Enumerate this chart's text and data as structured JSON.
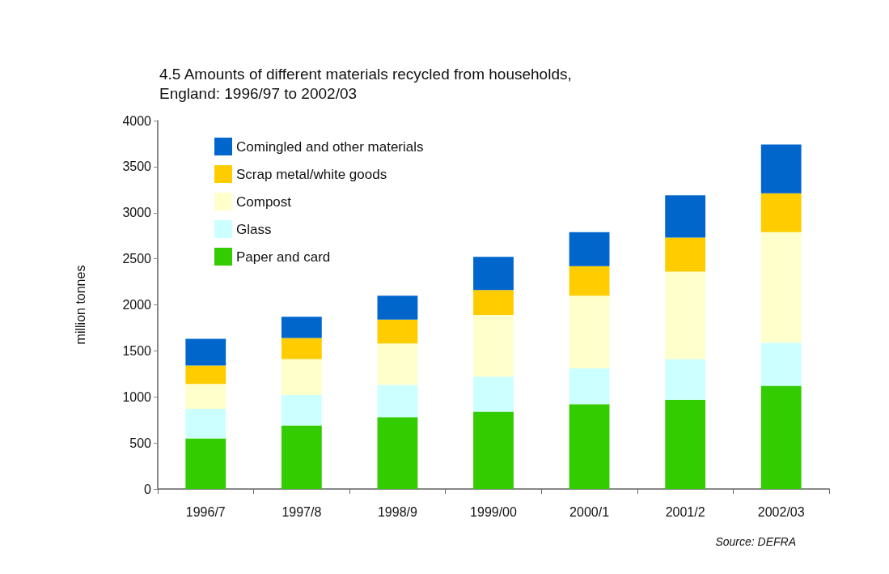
{
  "chart_data": {
    "type": "bar",
    "title": "4.5 Amounts of different materials recycled from households,\nEngland: 1996/97 to 2002/03",
    "ylabel": "million tonnes",
    "categories": [
      "1996/7",
      "1997/8",
      "1998/9",
      "1999/00",
      "2000/1",
      "2001/2",
      "2002/03"
    ],
    "series": [
      {
        "name": "Paper and card",
        "color": "#33cc00",
        "values": [
          550,
          690,
          780,
          840,
          920,
          970,
          1120
        ]
      },
      {
        "name": "Glass",
        "color": "#ccffff",
        "values": [
          320,
          330,
          350,
          380,
          390,
          440,
          470
        ]
      },
      {
        "name": "Compost",
        "color": "#ffffcc",
        "values": [
          270,
          390,
          450,
          670,
          790,
          950,
          1200
        ]
      },
      {
        "name": "Scrap metal/white goods",
        "color": "#ffcc00",
        "values": [
          200,
          230,
          260,
          270,
          320,
          370,
          420
        ]
      },
      {
        "name": "Comingled and other materials",
        "color": "#0066cc",
        "values": [
          290,
          230,
          260,
          360,
          370,
          460,
          530
        ]
      }
    ],
    "stacked": true,
    "ylim": [
      0,
      4000
    ],
    "yticks": [
      0,
      500,
      1000,
      1500,
      2000,
      2500,
      3000,
      3500,
      4000
    ],
    "grid": false,
    "legend": "top left",
    "annotations": [
      "Source: DEFRA"
    ]
  }
}
